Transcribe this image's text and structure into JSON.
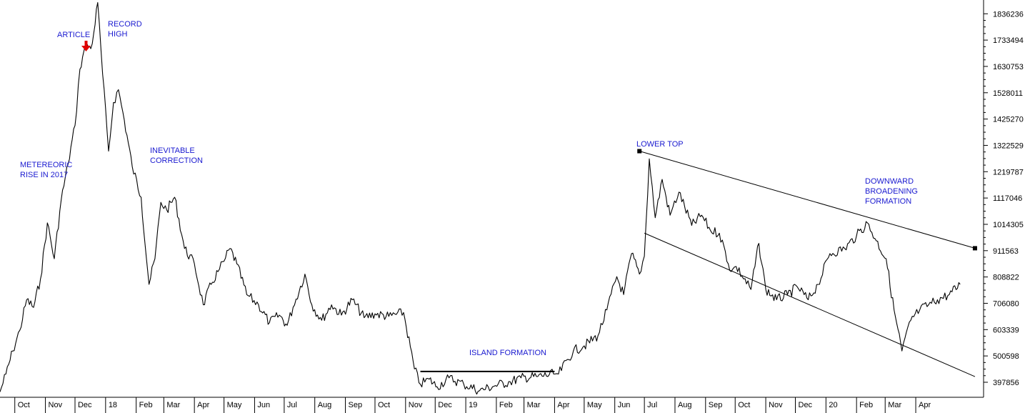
{
  "chart_data": {
    "type": "line",
    "title": "",
    "xlabel": "",
    "ylabel": "",
    "ylim": [
      342000,
      1890000
    ],
    "grid": false,
    "colors": {
      "line": "#000000",
      "annotation": "#1a1ad0",
      "arrow": "#e00000",
      "axis": "#000000"
    },
    "y_ticks": [
      "1836236",
      "1733494",
      "1630753",
      "1528011",
      "1425270",
      "1322529",
      "1219787",
      "1117046",
      "1014305",
      "911563",
      "808822",
      "706080",
      "603339",
      "500598",
      "397856"
    ],
    "x_ticks": [
      "Oct",
      "Nov",
      "Dec",
      "18",
      "Feb",
      "Mar",
      "Apr",
      "May",
      "Jun",
      "Jul",
      "Aug",
      "Sep",
      "Oct",
      "Nov",
      "Dec",
      "19",
      "Feb",
      "Mar",
      "Apr",
      "May",
      "Jun",
      "Jul",
      "Aug",
      "Sep",
      "Oct",
      "Nov",
      "Dec",
      "20",
      "Feb",
      "Mar",
      "Apr"
    ],
    "x_range": [
      "2017-09-16",
      "2020-06-08"
    ],
    "series": [
      {
        "x": [
          "2017-09-16",
          "2017-09-22",
          "2017-09-29",
          "2017-10-06",
          "2017-10-13",
          "2017-10-20",
          "2017-10-27",
          "2017-11-03",
          "2017-11-10",
          "2017-11-17",
          "2017-11-24",
          "2017-12-01",
          "2017-12-06",
          "2017-12-10",
          "2017-12-13",
          "2017-12-17",
          "2017-12-20",
          "2017-12-24",
          "2017-12-29",
          "2018-01-04",
          "2018-01-09",
          "2018-01-14",
          "2018-01-20",
          "2018-01-28",
          "2018-02-06",
          "2018-02-14",
          "2018-02-20",
          "2018-02-26",
          "2018-03-04",
          "2018-03-12",
          "2018-03-22",
          "2018-04-01",
          "2018-04-10",
          "2018-04-18",
          "2018-04-25",
          "2018-05-01",
          "2018-05-07",
          "2018-05-14",
          "2018-05-24",
          "2018-06-05",
          "2018-06-16",
          "2018-06-26",
          "2018-07-04",
          "2018-07-10",
          "2018-07-22",
          "2018-07-29",
          "2018-08-08",
          "2018-08-18",
          "2018-08-28",
          "2018-09-08",
          "2018-09-20",
          "2018-10-01",
          "2018-10-15",
          "2018-10-30",
          "2018-11-10",
          "2018-11-16",
          "2018-11-25",
          "2018-12-03",
          "2018-12-15",
          "2018-12-30",
          "2019-01-15",
          "2019-01-31",
          "2019-02-15",
          "2019-02-26",
          "2019-03-15",
          "2019-03-31",
          "2019-04-05",
          "2019-04-20",
          "2019-05-01",
          "2019-05-15",
          "2019-05-24",
          "2019-06-03",
          "2019-06-10",
          "2019-06-18",
          "2019-06-26",
          "2019-07-01",
          "2019-07-06",
          "2019-07-12",
          "2019-07-19",
          "2019-07-27",
          "2019-08-05",
          "2019-08-18",
          "2019-08-28",
          "2019-09-06",
          "2019-09-15",
          "2019-09-27",
          "2019-10-02",
          "2019-10-17",
          "2019-10-25",
          "2019-11-01",
          "2019-11-12",
          "2019-11-23",
          "2019-12-03",
          "2019-12-14",
          "2019-12-24",
          "2020-01-05",
          "2020-01-20",
          "2020-02-01",
          "2020-02-12",
          "2020-02-21",
          "2020-03-02",
          "2020-03-10",
          "2020-03-18",
          "2020-03-27",
          "2020-04-05",
          "2020-04-14",
          "2020-04-23",
          "2020-05-05",
          "2020-05-16"
        ],
        "values": [
          360000,
          430000,
          520000,
          600000,
          720000,
          690000,
          800000,
          1020000,
          880000,
          1110000,
          1250000,
          1400000,
          1620000,
          1690000,
          1720000,
          1700000,
          1760000,
          1880000,
          1600000,
          1300000,
          1490000,
          1540000,
          1420000,
          1240000,
          1120000,
          780000,
          880000,
          1100000,
          1070000,
          1120000,
          920000,
          860000,
          700000,
          780000,
          830000,
          870000,
          920000,
          860000,
          740000,
          700000,
          630000,
          660000,
          620000,
          690000,
          820000,
          700000,
          640000,
          700000,
          660000,
          720000,
          650000,
          665000,
          655000,
          670000,
          450000,
          390000,
          410000,
          380000,
          415000,
          390000,
          365000,
          385000,
          400000,
          415000,
          420000,
          430000,
          430000,
          520000,
          540000,
          580000,
          680000,
          810000,
          740000,
          900000,
          820000,
          890000,
          1270000,
          1040000,
          1190000,
          1050000,
          1140000,
          1010000,
          1050000,
          990000,
          980000,
          830000,
          850000,
          760000,
          940000,
          760000,
          720000,
          740000,
          770000,
          720000,
          780000,
          900000,
          920000,
          970000,
          1020000,
          950000,
          880000,
          680000,
          520000,
          640000,
          680000,
          700000,
          720000,
          740000,
          780000
        ]
      }
    ],
    "trendlines": [
      {
        "label": "upper",
        "x": [
          "2019-06-26",
          "2020-05-31"
        ],
        "values": [
          1300000,
          921000
        ]
      },
      {
        "label": "lower",
        "x": [
          "2019-07-01",
          "2020-05-31"
        ],
        "values": [
          980000,
          420000
        ]
      },
      {
        "label": "island",
        "x": [
          "2018-11-16",
          "2019-04-01"
        ],
        "values": [
          440000,
          440000
        ]
      }
    ],
    "annotations": [
      {
        "lines": [
          "METEREORIC",
          "RISE IN 2017"
        ]
      },
      {
        "lines": [
          "ARTICLE"
        ]
      },
      {
        "lines": [
          "RECORD",
          "HIGH"
        ]
      },
      {
        "lines": [
          "INEVITABLE",
          "CORRECTION"
        ]
      },
      {
        "lines": [
          "ISLAND FORMATION"
        ]
      },
      {
        "lines": [
          "LOWER TOP"
        ]
      },
      {
        "lines": [
          "DOWNWARD",
          "BROADENING",
          "FORMATION"
        ]
      }
    ]
  }
}
